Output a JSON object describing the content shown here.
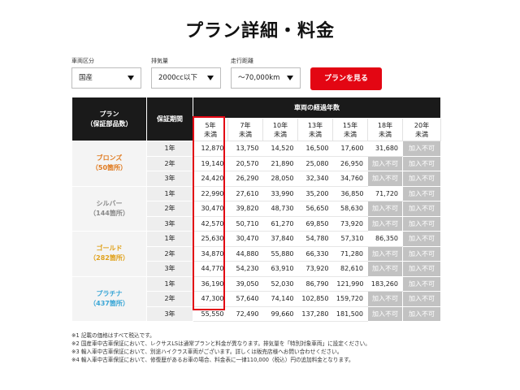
{
  "page": {
    "title": "プラン詳細・料金"
  },
  "filters": {
    "vehicle_type": {
      "label": "車両区分",
      "value": "国産"
    },
    "displacement": {
      "label": "排気量",
      "value": "2000cc以下"
    },
    "mileage": {
      "label": "走行距離",
      "value": "〜70,000km"
    },
    "submit_label": "プランを見る"
  },
  "table": {
    "plan_header": [
      "プラン",
      "（保証部品数）"
    ],
    "period_header": "保証期間",
    "age_header": "車両の経過年数",
    "age_columns": [
      [
        "5年",
        "未満"
      ],
      [
        "7年",
        "未満"
      ],
      [
        "10年",
        "未満"
      ],
      [
        "13年",
        "未満"
      ],
      [
        "15年",
        "未満"
      ],
      [
        "18年",
        "未満"
      ],
      [
        "20年",
        "未満"
      ]
    ],
    "not_available": "加入不可",
    "tiers": [
      {
        "name": "ブロンズ",
        "parts": "（50箇所）",
        "color": "#e07a1f",
        "rows": [
          {
            "period": "1年",
            "values": [
              "12,870",
              "13,750",
              "14,520",
              "16,500",
              "17,600",
              "31,680",
              null
            ]
          },
          {
            "period": "2年",
            "values": [
              "19,140",
              "20,570",
              "21,890",
              "25,080",
              "26,950",
              null,
              null
            ]
          },
          {
            "period": "3年",
            "values": [
              "24,420",
              "26,290",
              "28,050",
              "32,340",
              "34,760",
              null,
              null
            ]
          }
        ]
      },
      {
        "name": "シルバー",
        "parts": "（144箇所）",
        "color": "#8a8a8a",
        "rows": [
          {
            "period": "1年",
            "values": [
              "22,990",
              "27,610",
              "33,990",
              "35,200",
              "36,850",
              "71,720",
              null
            ]
          },
          {
            "period": "2年",
            "values": [
              "30,470",
              "39,820",
              "48,730",
              "56,650",
              "58,630",
              null,
              null
            ]
          },
          {
            "period": "3年",
            "values": [
              "42,570",
              "50,710",
              "61,270",
              "69,850",
              "73,920",
              null,
              null
            ]
          }
        ]
      },
      {
        "name": "ゴールド",
        "parts": "（282箇所）",
        "color": "#e0a21c",
        "rows": [
          {
            "period": "1年",
            "values": [
              "25,630",
              "30,470",
              "37,840",
              "54,780",
              "57,310",
              "86,350",
              null
            ]
          },
          {
            "period": "2年",
            "values": [
              "34,870",
              "44,880",
              "55,880",
              "66,330",
              "71,280",
              null,
              null
            ]
          },
          {
            "period": "3年",
            "values": [
              "44,770",
              "54,230",
              "63,910",
              "73,920",
              "82,610",
              null,
              null
            ]
          }
        ]
      },
      {
        "name": "プラチナ",
        "parts": "（437箇所）",
        "color": "#3aa6d6",
        "rows": [
          {
            "period": "1年",
            "values": [
              "36,190",
              "39,050",
              "52,030",
              "86,790",
              "121,990",
              "183,260",
              null
            ]
          },
          {
            "period": "2年",
            "values": [
              "47,300",
              "57,640",
              "74,140",
              "102,850",
              "159,720",
              null,
              null
            ]
          },
          {
            "period": "3年",
            "values": [
              "55,550",
              "72,490",
              "99,660",
              "137,280",
              "181,500",
              null,
              null
            ]
          }
        ]
      }
    ]
  },
  "notes": [
    "※1 記載の価格はすべて税込です。",
    "※2 国産車中古車保証において、レクサスLSは通常プランと料金が異なります。排気量を「特別対象車両」に設定ください。",
    "※3 輸入車中古車保証において、別途ハイクラス車両がございます。詳しくは販売店様へお問い合わせください。",
    "※4 輸入車中古車保証において、修復歴があるお車の場合、料金表に一律110,000（税込）円の追加料金となります。"
  ]
}
